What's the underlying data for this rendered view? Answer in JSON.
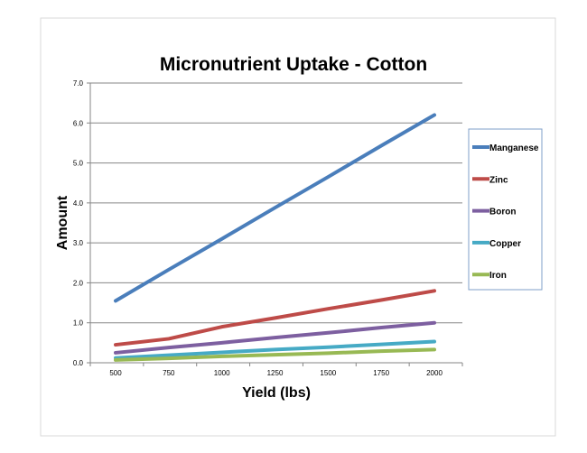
{
  "chart_data": {
    "type": "line",
    "title": "Micronutrient Uptake - Cotton",
    "xlabel": "Yield (lbs)",
    "ylabel": "Amount",
    "x": [
      500,
      750,
      1000,
      1250,
      1500,
      1750,
      2000
    ],
    "x_tick_labels": [
      "500",
      "750",
      "1000",
      "1250",
      "1500",
      "1750",
      "2000"
    ],
    "y_tick_labels": [
      "0.0",
      "1.0",
      "2.0",
      "3.0",
      "4.0",
      "5.0",
      "6.0",
      "7.0"
    ],
    "ylim": [
      0,
      7
    ],
    "grid": true,
    "legend_position": "right",
    "series": [
      {
        "name": "Manganese",
        "color": "#4a7ebb",
        "values": [
          1.55,
          2.33,
          3.1,
          3.88,
          4.65,
          5.43,
          6.2
        ]
      },
      {
        "name": "Zinc",
        "color": "#be4b48",
        "values": [
          0.45,
          0.6,
          0.9,
          1.12,
          1.35,
          1.57,
          1.8
        ]
      },
      {
        "name": "Boron",
        "color": "#7d5fa0",
        "values": [
          0.25,
          0.38,
          0.5,
          0.63,
          0.75,
          0.88,
          1.0
        ]
      },
      {
        "name": "Copper",
        "color": "#46aac5",
        "values": [
          0.12,
          0.19,
          0.26,
          0.33,
          0.39,
          0.46,
          0.53
        ]
      },
      {
        "name": "Iron",
        "color": "#98b954",
        "values": [
          0.07,
          0.11,
          0.16,
          0.2,
          0.24,
          0.29,
          0.33
        ]
      }
    ]
  }
}
